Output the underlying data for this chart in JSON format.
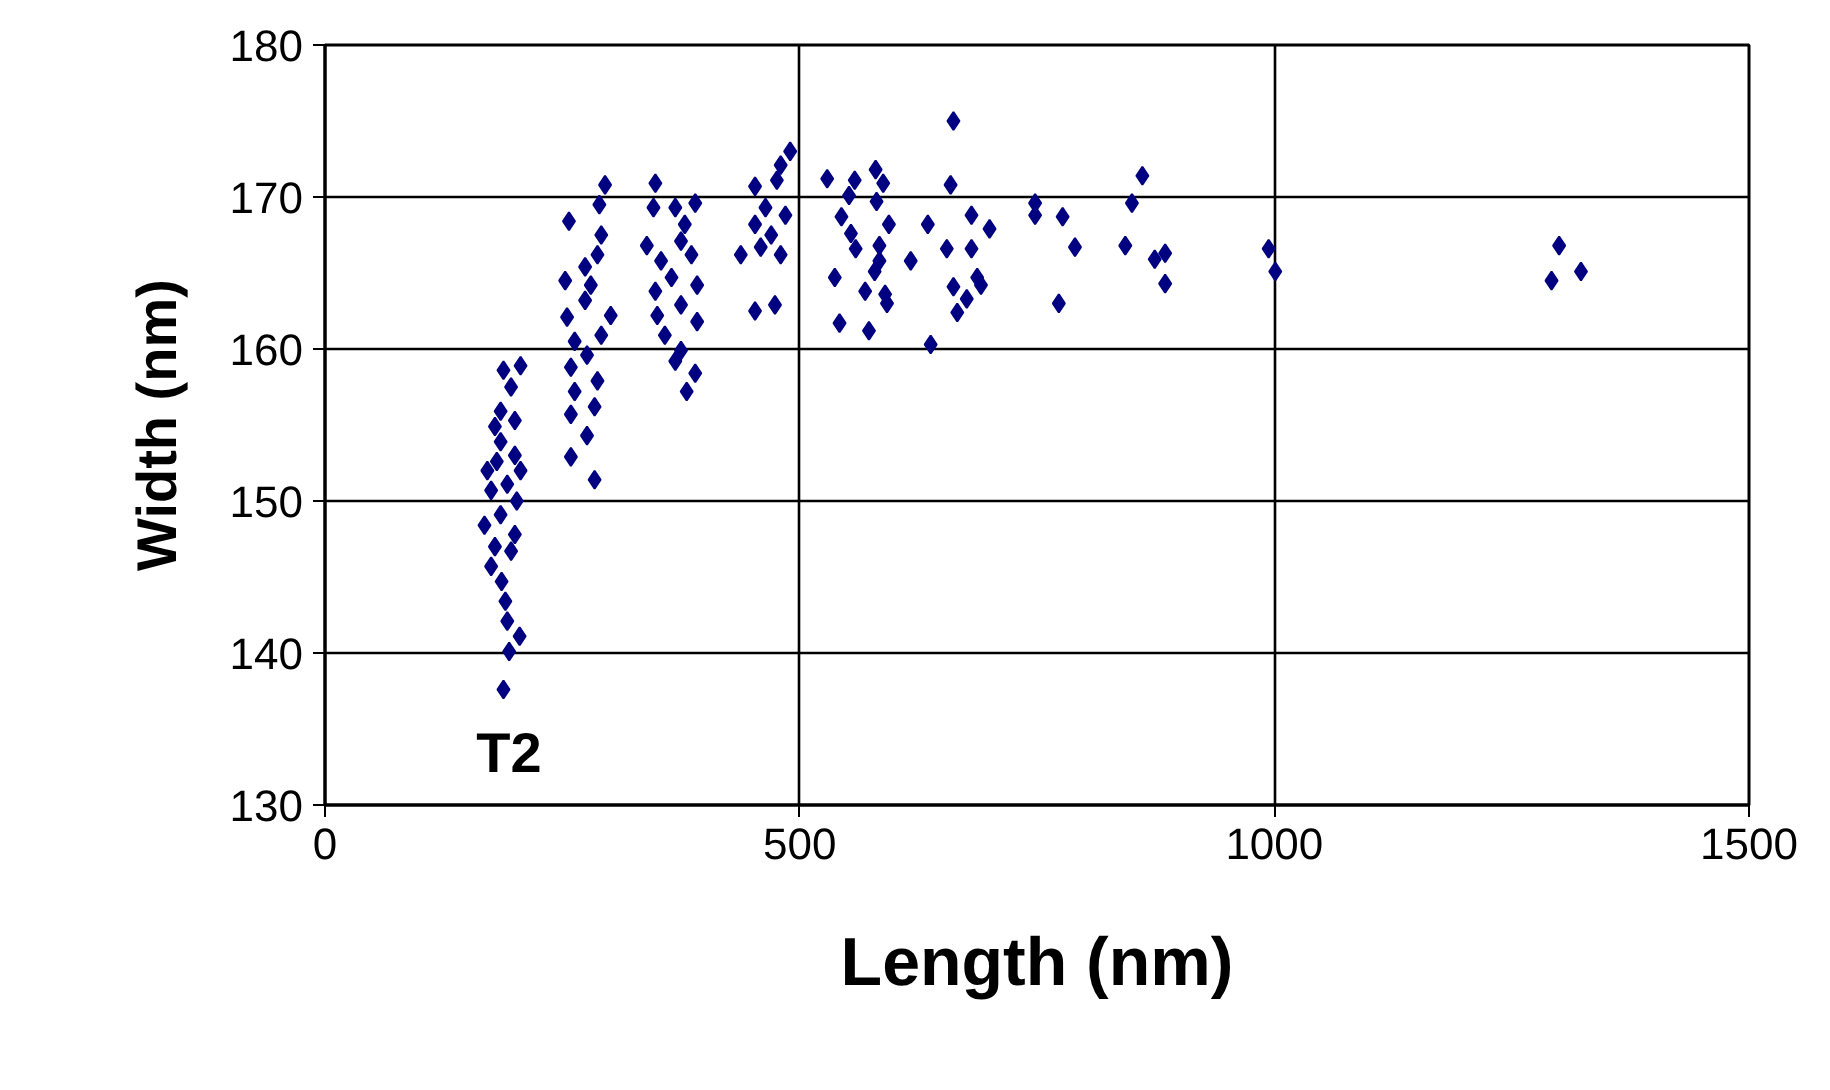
{
  "chart_data": {
    "type": "scatter",
    "xlabel": "Length (nm)",
    "ylabel": "Width (nm)",
    "xlim": [
      0,
      1500
    ],
    "ylim": [
      130,
      180
    ],
    "xticks": [
      0,
      500,
      1000,
      1500
    ],
    "yticks": [
      130,
      140,
      150,
      160,
      170,
      180
    ],
    "grid": true,
    "marker": "diamond",
    "annotations": [
      "T2"
    ],
    "series": [
      {
        "color": "#000080",
        "x": [
          188,
          194,
          205,
          192,
          190,
          186,
          175,
          196,
          179,
          168,
          200,
          185,
          202,
          175,
          192,
          171,
          206,
          181,
          200,
          185,
          179,
          200,
          185,
          196,
          188,
          206,
          284,
          259,
          276,
          259,
          284,
          263,
          287,
          259,
          276,
          263,
          291,
          255,
          301,
          274,
          280,
          253,
          274,
          287,
          291,
          257,
          289,
          295,
          381,
          390,
          369,
          375,
          358,
          392,
          350,
          375,
          348,
          392,
          365,
          354,
          386,
          339,
          375,
          379,
          369,
          390,
          346,
          348,
          453,
          474,
          438,
          459,
          480,
          470,
          485,
          453,
          464,
          453,
          476,
          480,
          490,
          662,
          529,
          558,
          580,
          588,
          552,
          581,
          659,
          544,
          554,
          594,
          635,
          559,
          584,
          584,
          579,
          617,
          655,
          681,
          681,
          700,
          537,
          569,
          590,
          592,
          662,
          687,
          691,
          676,
          666,
          542,
          573,
          638,
          748,
          748,
          777,
          790,
          773,
          861,
          850,
          843,
          874,
          885,
          885,
          994,
          1001,
          1300,
          1323,
          1292
        ],
        "values": [
          137.6,
          140.1,
          141.1,
          142.1,
          143.4,
          144.7,
          145.7,
          146.7,
          147.0,
          148.4,
          147.8,
          149.1,
          150.0,
          150.7,
          151.1,
          152.0,
          152.0,
          152.6,
          153.0,
          153.9,
          154.9,
          155.3,
          155.9,
          157.5,
          158.6,
          158.9,
          151.4,
          152.9,
          154.3,
          155.7,
          156.2,
          157.2,
          157.9,
          158.8,
          159.6,
          160.5,
          160.9,
          162.1,
          162.2,
          163.2,
          164.2,
          164.5,
          165.4,
          166.2,
          167.5,
          168.4,
          169.5,
          170.8,
          157.2,
          158.4,
          159.2,
          159.9,
          160.9,
          161.8,
          162.2,
          162.9,
          163.8,
          164.2,
          164.7,
          165.8,
          166.2,
          166.8,
          167.1,
          168.2,
          169.3,
          169.6,
          169.3,
          170.9,
          162.5,
          162.9,
          166.2,
          166.7,
          166.2,
          167.5,
          168.8,
          168.2,
          169.3,
          170.7,
          171.1,
          172.1,
          173.0,
          175.0,
          171.2,
          171.1,
          171.8,
          170.9,
          170.1,
          169.7,
          170.8,
          168.7,
          167.6,
          168.2,
          168.2,
          166.6,
          166.8,
          165.8,
          165.1,
          165.8,
          166.6,
          166.6,
          168.8,
          167.9,
          164.7,
          163.8,
          163.6,
          163.0,
          164.1,
          164.7,
          164.2,
          163.3,
          162.4,
          161.7,
          161.2,
          160.3,
          169.6,
          168.8,
          168.7,
          166.7,
          163.0,
          171.4,
          169.6,
          166.8,
          165.9,
          166.3,
          164.3,
          166.6,
          165.1,
          166.8,
          165.1,
          164.5
        ]
      }
    ]
  }
}
